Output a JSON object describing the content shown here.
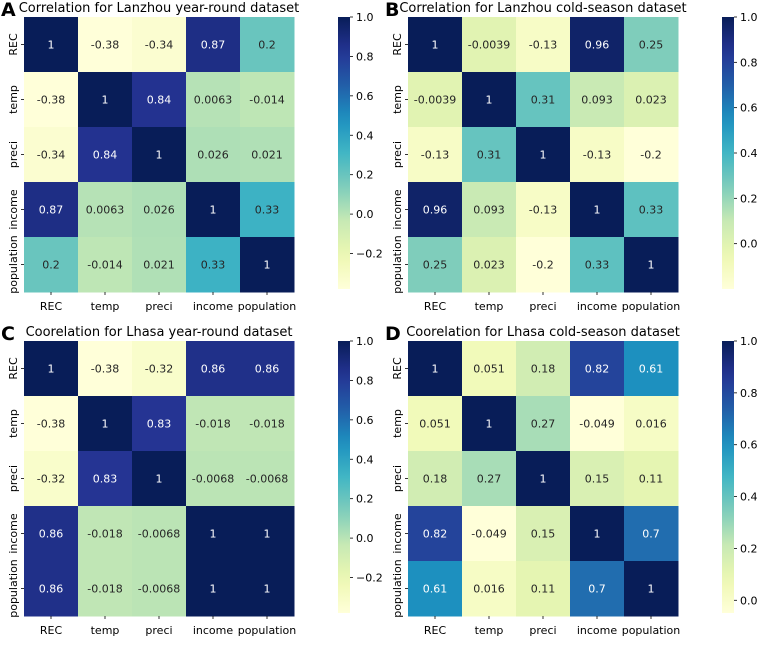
{
  "chart_data": [
    {
      "type": "heatmap",
      "panel_label": "A",
      "title": "Correlation for Lanzhou year-round dataset",
      "labels": [
        "REC",
        "temp",
        "preci",
        "income",
        "population"
      ],
      "values": [
        [
          1,
          -0.38,
          -0.34,
          0.87,
          0.2
        ],
        [
          -0.38,
          1,
          0.84,
          0.0063,
          -0.014
        ],
        [
          -0.34,
          0.84,
          1,
          0.026,
          0.021
        ],
        [
          0.87,
          0.0063,
          0.026,
          1,
          0.33
        ],
        [
          0.2,
          -0.014,
          0.021,
          0.33,
          1
        ]
      ],
      "cell_text": [
        [
          "1",
          "-0.38",
          "-0.34",
          "0.87",
          "0.2"
        ],
        [
          "-0.38",
          "1",
          "0.84",
          "0.0063",
          "-0.014"
        ],
        [
          "-0.34",
          "0.84",
          "1",
          "0.026",
          "0.021"
        ],
        [
          "0.87",
          "0.0063",
          "0.026",
          "1",
          "0.33"
        ],
        [
          "0.2",
          "-0.014",
          "0.021",
          "0.33",
          "1"
        ]
      ],
      "vmin": -0.38,
      "vmax": 1,
      "colorbar_ticks": [
        1.0,
        0.8,
        0.6,
        0.4,
        0.2,
        0.0,
        -0.2
      ],
      "colorbar_tick_labels": [
        "1.0",
        "0.8",
        "0.6",
        "0.4",
        "0.2",
        "0.0",
        "−0.2"
      ]
    },
    {
      "type": "heatmap",
      "panel_label": "B",
      "title": "Correlation for Lanzhou cold-season dataset",
      "labels": [
        "REC",
        "temp",
        "preci",
        "income",
        "population"
      ],
      "values": [
        [
          1,
          -0.0039,
          -0.13,
          0.96,
          0.25
        ],
        [
          -0.0039,
          1,
          0.31,
          0.093,
          0.023
        ],
        [
          -0.13,
          0.31,
          1,
          -0.13,
          -0.2
        ],
        [
          0.96,
          0.093,
          -0.13,
          1,
          0.33
        ],
        [
          0.25,
          0.023,
          -0.2,
          0.33,
          1
        ]
      ],
      "cell_text": [
        [
          "1",
          "-0.0039",
          "-0.13",
          "0.96",
          "0.25"
        ],
        [
          "-0.0039",
          "1",
          "0.31",
          "0.093",
          "0.023"
        ],
        [
          "-0.13",
          "0.31",
          "1",
          "-0.13",
          "-0.2"
        ],
        [
          "0.96",
          "0.093",
          "-0.13",
          "1",
          "0.33"
        ],
        [
          "0.25",
          "0.023",
          "-0.2",
          "0.33",
          "1"
        ]
      ],
      "vmin": -0.2,
      "vmax": 1,
      "colorbar_ticks": [
        1.0,
        0.8,
        0.6,
        0.4,
        0.2,
        0.0
      ],
      "colorbar_tick_labels": [
        "1.0",
        "0.8",
        "0.6",
        "0.4",
        "0.2",
        "0.0"
      ]
    },
    {
      "type": "heatmap",
      "panel_label": "C",
      "title": "Coorelation for Lhasa year-round dataset",
      "labels": [
        "REC",
        "temp",
        "preci",
        "income",
        "population"
      ],
      "values": [
        [
          1,
          -0.38,
          -0.32,
          0.86,
          0.86
        ],
        [
          -0.38,
          1,
          0.83,
          -0.018,
          -0.018
        ],
        [
          -0.32,
          0.83,
          1,
          -0.0068,
          -0.0068
        ],
        [
          0.86,
          -0.018,
          -0.0068,
          1,
          1
        ],
        [
          0.86,
          -0.018,
          -0.0068,
          1,
          1
        ]
      ],
      "cell_text": [
        [
          "1",
          "-0.38",
          "-0.32",
          "0.86",
          "0.86"
        ],
        [
          "-0.38",
          "1",
          "0.83",
          "-0.018",
          "-0.018"
        ],
        [
          "-0.32",
          "0.83",
          "1",
          "-0.0068",
          "-0.0068"
        ],
        [
          "0.86",
          "-0.018",
          "-0.0068",
          "1",
          "1"
        ],
        [
          "0.86",
          "-0.018",
          "-0.0068",
          "1",
          "1"
        ]
      ],
      "vmin": -0.38,
      "vmax": 1,
      "colorbar_ticks": [
        1.0,
        0.8,
        0.6,
        0.4,
        0.2,
        0.0,
        -0.2
      ],
      "colorbar_tick_labels": [
        "1.0",
        "0.8",
        "0.6",
        "0.4",
        "0.2",
        "0.0",
        "−0.2"
      ]
    },
    {
      "type": "heatmap",
      "panel_label": "D",
      "title": "Coorelation for Lhasa cold-season dataset",
      "labels": [
        "REC",
        "temp",
        "preci",
        "income",
        "population"
      ],
      "values": [
        [
          1,
          0.051,
          0.18,
          0.82,
          0.61
        ],
        [
          0.051,
          1,
          0.27,
          -0.049,
          0.016
        ],
        [
          0.18,
          0.27,
          1,
          0.15,
          0.11
        ],
        [
          0.82,
          -0.049,
          0.15,
          1,
          0.7
        ],
        [
          0.61,
          0.016,
          0.11,
          0.7,
          1
        ]
      ],
      "cell_text": [
        [
          "1",
          "0.051",
          "0.18",
          "0.82",
          "0.61"
        ],
        [
          "0.051",
          "1",
          "0.27",
          "-0.049",
          "0.016"
        ],
        [
          "0.18",
          "0.27",
          "1",
          "0.15",
          "0.11"
        ],
        [
          "0.82",
          "-0.049",
          "0.15",
          "1",
          "0.7"
        ],
        [
          "0.61",
          "0.016",
          "0.11",
          "0.7",
          "1"
        ]
      ],
      "vmin": -0.049,
      "vmax": 1,
      "colorbar_ticks": [
        1.0,
        0.8,
        0.6,
        0.4,
        0.2,
        0.0
      ],
      "colorbar_tick_labels": [
        "1.0",
        "0.8",
        "0.6",
        "0.4",
        "0.2",
        "0.0"
      ]
    }
  ],
  "colormap": "YlGnBu",
  "colormap_stops": [
    "#ffffd9",
    "#edf8b1",
    "#c7e9b4",
    "#7fcdbb",
    "#41b6c4",
    "#1d91c0",
    "#225ea8",
    "#253494",
    "#081d58"
  ]
}
